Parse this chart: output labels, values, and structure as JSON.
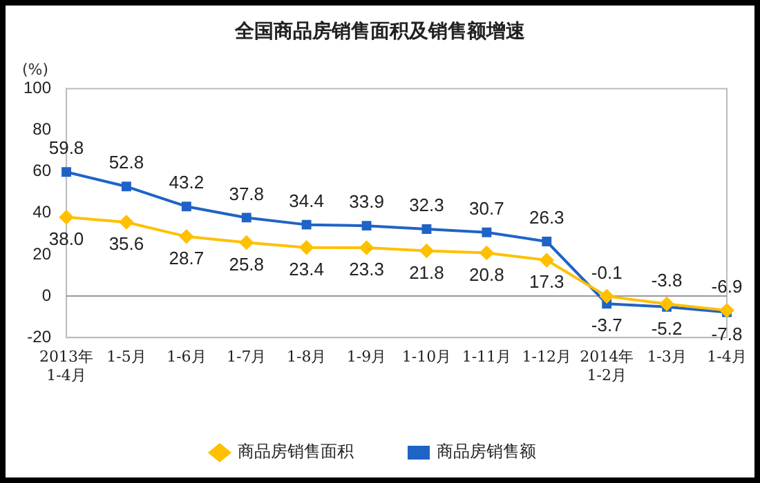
{
  "chart_data": {
    "type": "line",
    "title": "全国商品房销售面积及销售额增速",
    "ylabel": "(%)",
    "categories": [
      "2013年\n1-4月",
      "1-5月",
      "1-6月",
      "1-7月",
      "1-8月",
      "1-9月",
      "1-10月",
      "1-11月",
      "1-12月",
      "2014年\n1-2月",
      "1-3月",
      "1-4月"
    ],
    "series": [
      {
        "name": "商品房销售面积",
        "color": "#ffc000",
        "marker": "diamond",
        "values": [
          38.0,
          35.6,
          28.7,
          25.8,
          23.4,
          23.3,
          21.8,
          20.8,
          17.3,
          -0.1,
          -3.8,
          -6.9
        ],
        "value_labels": [
          "38.0",
          "35.6",
          "28.7",
          "25.8",
          "23.4",
          "23.3",
          "21.8",
          "20.8",
          "17.3",
          "-0.1",
          "-3.8",
          "-6.9"
        ]
      },
      {
        "name": "商品房销售额",
        "color": "#1f63c6",
        "marker": "square",
        "values": [
          59.8,
          52.8,
          43.2,
          37.8,
          34.4,
          33.9,
          32.3,
          30.7,
          26.3,
          -3.7,
          -5.2,
          -7.8
        ],
        "value_labels": [
          "59.8",
          "52.8",
          "43.2",
          "37.8",
          "34.4",
          "33.9",
          "32.3",
          "30.7",
          "26.3",
          "-3.7",
          "-5.2",
          "-7.8"
        ]
      }
    ],
    "ylim": [
      -20,
      100
    ],
    "yticks": [
      -20,
      0,
      20,
      40,
      60,
      80,
      100
    ],
    "ref_lines": [
      {
        "axis": "y",
        "value": 0
      }
    ],
    "legend": "bottom"
  }
}
